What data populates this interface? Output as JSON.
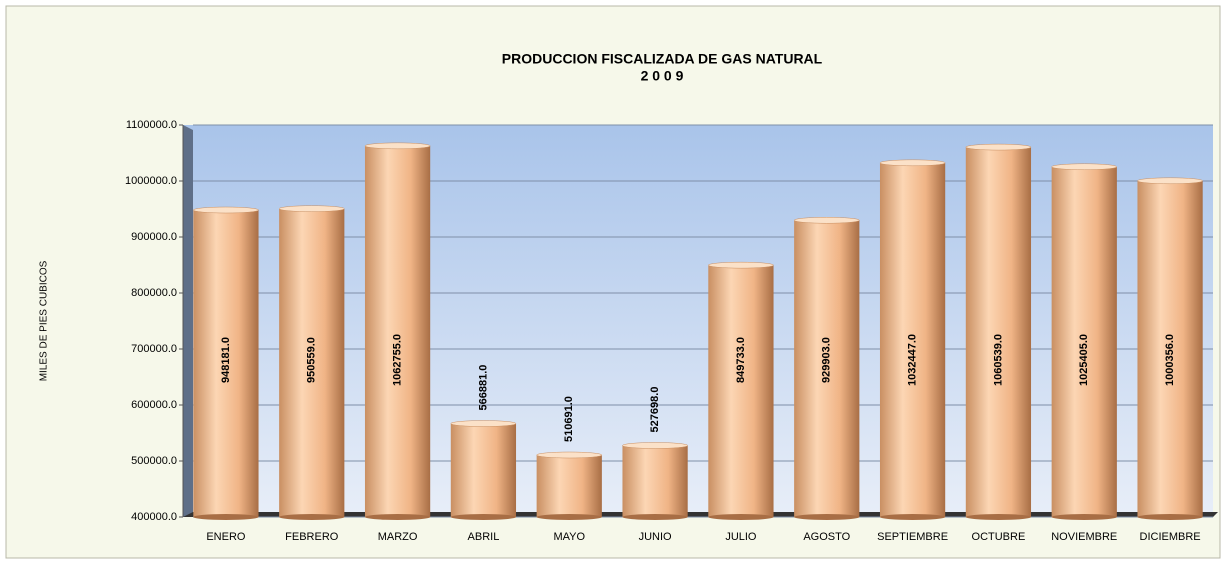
{
  "chart_data": {
    "type": "bar",
    "title": "PRODUCCION FISCALIZADA DE GAS NATURAL",
    "subtitle": "2 0 0 9",
    "y_label": "MILES DE PIES CUBICOS",
    "categories": [
      "ENERO",
      "FEBRERO",
      "MARZO",
      "ABRIL",
      "MAYO",
      "JUNIO",
      "JULIO",
      "AGOSTO",
      "SEPTIEMBRE",
      "OCTUBRE",
      "NOVIEMBRE",
      "DICIEMBRE"
    ],
    "values": [
      948181,
      950559,
      1062755,
      566881,
      510691,
      527698,
      849733,
      929903,
      1032447,
      1060539,
      1025405,
      1000356
    ],
    "value_labels": [
      "948181.0",
      "950559.0",
      "1062755.0",
      "566881.0",
      "510691.0",
      "527698.0",
      "849733.0",
      "929903.0",
      "1032447.0",
      "1060539.0",
      "1025405.0",
      "1000356.0"
    ],
    "color": "#f2b07f",
    "ylim": [
      400000,
      1100000
    ],
    "yticks": [
      {
        "value": 400000,
        "label": "400000.0"
      },
      {
        "value": 500000,
        "label": "500000.0"
      },
      {
        "value": 600000,
        "label": "600000.0"
      },
      {
        "value": 700000,
        "label": "700000.0"
      },
      {
        "value": 800000,
        "label": "800000.0"
      },
      {
        "value": 900000,
        "label": "900000.0"
      },
      {
        "value": 1000000,
        "label": "1000000.0"
      },
      {
        "value": 1100000,
        "label": "1100000.0"
      }
    ],
    "grid": true
  }
}
